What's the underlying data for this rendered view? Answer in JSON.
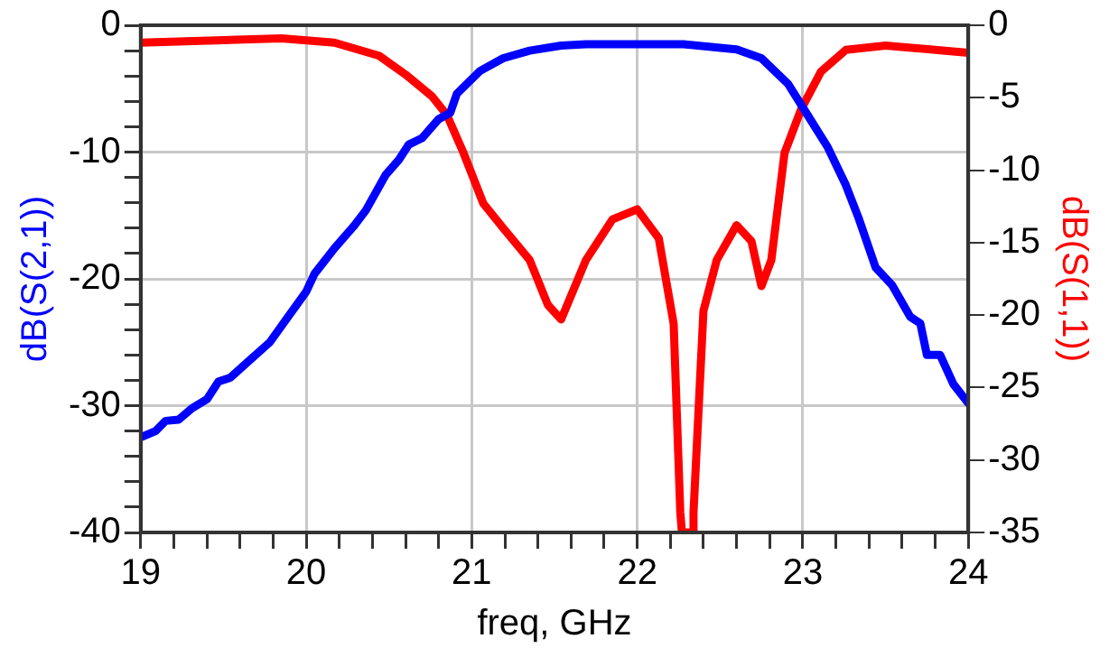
{
  "chart_data": {
    "type": "line",
    "xlabel": "freq, GHz",
    "ylabel": "dB(S(2,1))",
    "y2label": "dB(S(1,1))",
    "xlim": [
      19,
      24
    ],
    "xticks": [
      19,
      {
        "value": 19.2,
        "label": null
      },
      {
        "value": 19.4,
        "label": null
      },
      {
        "value": 19.6,
        "label": null
      },
      {
        "value": 19.8,
        "label": null
      },
      20,
      {
        "value": 20.2,
        "label": null
      },
      {
        "value": 20.4,
        "label": null
      },
      {
        "value": 20.6,
        "label": null
      },
      {
        "value": 20.8,
        "label": null
      },
      21,
      {
        "value": 21.2,
        "label": null
      },
      {
        "value": 21.4,
        "label": null
      },
      {
        "value": 21.6,
        "label": null
      },
      {
        "value": 21.8,
        "label": null
      },
      22,
      {
        "value": 22.2,
        "label": null
      },
      {
        "value": 22.4,
        "label": null
      },
      {
        "value": 22.6,
        "label": null
      },
      {
        "value": 22.8,
        "label": null
      },
      23,
      {
        "value": 23.2,
        "label": null
      },
      {
        "value": 23.4,
        "label": null
      },
      {
        "value": 23.6,
        "label": null
      },
      {
        "value": 23.8,
        "label": null
      },
      24
    ],
    "ylim": [
      -40,
      0
    ],
    "yticks": [
      -40,
      {
        "value": -38,
        "label": null
      },
      {
        "value": -36,
        "label": null
      },
      {
        "value": -34,
        "label": null
      },
      {
        "value": -32,
        "label": null
      },
      -30,
      {
        "value": -28,
        "label": null
      },
      {
        "value": -26,
        "label": null
      },
      {
        "value": -24,
        "label": null
      },
      {
        "value": -22,
        "label": null
      },
      -20,
      {
        "value": -18,
        "label": null
      },
      {
        "value": -16,
        "label": null
      },
      {
        "value": -14,
        "label": null
      },
      {
        "value": -12,
        "label": null
      },
      -10,
      {
        "value": -8,
        "label": null
      },
      {
        "value": -6,
        "label": null
      },
      {
        "value": -4,
        "label": null
      },
      {
        "value": -2,
        "label": null
      },
      0
    ],
    "y2lim": [
      -35,
      0
    ],
    "y2ticks": [
      -35,
      -30,
      -25,
      -20,
      -15,
      -10,
      -5,
      0
    ],
    "grid": true,
    "legend": false,
    "line_style": "solid",
    "marker": "none",
    "series": [
      {
        "color": "#0000ff",
        "x": [
          19.0,
          19.09,
          19.15,
          19.23,
          19.31,
          19.4,
          19.47,
          19.54,
          19.66,
          19.78,
          19.89,
          20.0,
          20.05,
          20.17,
          20.29,
          20.36,
          20.48,
          20.56,
          20.62,
          20.7,
          20.8,
          20.87,
          20.91,
          21.05,
          21.19,
          21.35,
          21.54,
          21.69,
          22.28,
          22.6,
          22.75,
          22.91,
          23.03,
          23.15,
          23.26,
          23.34,
          23.44,
          23.54,
          23.65,
          23.71,
          23.75,
          23.83,
          23.91,
          24.0
        ],
        "values": [
          -32.5,
          -32.0,
          -31.2,
          -31.1,
          -30.2,
          -29.5,
          -28.1,
          -27.8,
          -26.4,
          -25.0,
          -23.0,
          -21.0,
          -19.6,
          -17.6,
          -15.8,
          -14.6,
          -11.8,
          -10.6,
          -9.4,
          -8.9,
          -7.4,
          -6.9,
          -5.4,
          -3.6,
          -2.6,
          -2.0,
          -1.6,
          -1.5,
          -1.5,
          -1.9,
          -2.6,
          -4.6,
          -7.1,
          -9.6,
          -12.6,
          -15.3,
          -19.1,
          -20.5,
          -23.0,
          -23.5,
          -26.0,
          -26.0,
          -28.3,
          -29.8
        ]
      },
      {
        "color": "#ff0000",
        "axis": "y2",
        "x": [
          19.0,
          19.85,
          20.17,
          20.44,
          20.6,
          20.76,
          20.85,
          20.95,
          21.07,
          21.19,
          21.35,
          21.46,
          21.54,
          21.69,
          21.85,
          22.0,
          22.13,
          22.22,
          22.26,
          22.27,
          22.33,
          22.34,
          22.4,
          22.48,
          22.6,
          22.69,
          22.75,
          22.81,
          22.89,
          22.99,
          23.11,
          23.26,
          23.5,
          24.0
        ],
        "values": [
          -1.2,
          -0.9,
          -1.2,
          -2.1,
          -3.4,
          -4.9,
          -6.2,
          -8.8,
          -12.3,
          -14.0,
          -16.2,
          -19.3,
          -20.3,
          -16.2,
          -13.4,
          -12.7,
          -14.7,
          -20.6,
          -33.6,
          -35,
          -35,
          -33.6,
          -19.7,
          -16.2,
          -13.8,
          -14.9,
          -18.0,
          -16.2,
          -8.8,
          -5.8,
          -3.2,
          -1.7,
          -1.4,
          -1.9
        ]
      }
    ]
  }
}
